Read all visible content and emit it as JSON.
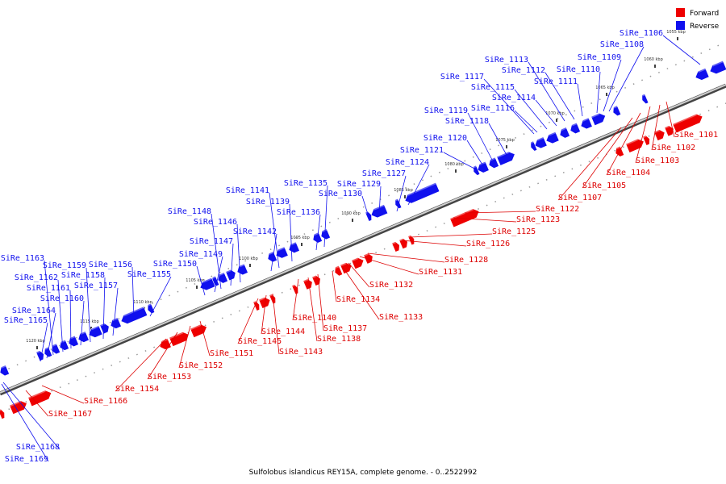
{
  "caption": "Sulfolobus islandicus REY15A, complete genome. - 0..2522992",
  "legend": [
    {
      "label": "Forward",
      "color": "#ee0000"
    },
    {
      "label": "Reverse",
      "color": "#1010ee"
    }
  ],
  "axis": {
    "ticks": [
      "1055 kbp",
      "1060 kbp",
      "1065 kbp",
      "1070 kbp",
      "1075 kbp",
      "1080 kbp",
      "1085 kbp",
      "1090 kbp",
      "1095 kbp",
      "1100 kbp",
      "1105 kbp",
      "1110 kbp",
      "1115 kbp",
      "1120 kbp"
    ]
  },
  "reverse_genes": [
    "SiRe_1106",
    "SiRe_1108",
    "SiRe_1109",
    "SiRe_1110",
    "SiRe_1111",
    "SiRe_1112",
    "SiRe_1113",
    "SiRe_1114",
    "SiRe_1115",
    "SiRe_1116",
    "SiRe_1117",
    "SiRe_1118",
    "SiRe_1119",
    "SiRe_1120",
    "SiRe_1121",
    "SiRe_1124",
    "SiRe_1127",
    "SiRe_1129",
    "SiRe_1130",
    "SiRe_1135",
    "SiRe_1136",
    "SiRe_1139",
    "SiRe_1141",
    "SiRe_1142",
    "SiRe_1146",
    "SiRe_1147",
    "SiRe_1148",
    "SiRe_1149",
    "SiRe_1150",
    "SiRe_1155",
    "SiRe_1156",
    "SiRe_1157",
    "SiRe_1158",
    "SiRe_1159",
    "SiRe_1160",
    "SiRe_1161",
    "SiRe_1162",
    "SiRe_1163",
    "SiRe_1164",
    "SiRe_1165",
    "SiRe_1168",
    "SiRe_1169"
  ],
  "forward_genes": [
    "SiRe_1101",
    "SiRe_1102",
    "SiRe_1103",
    "SiRe_1104",
    "SiRe_1105",
    "SiRe_1107",
    "SiRe_1122",
    "SiRe_1123",
    "SiRe_1125",
    "SiRe_1126",
    "SiRe_1128",
    "SiRe_1131",
    "SiRe_1132",
    "SiRe_1133",
    "SiRe_1134",
    "SiRe_1137",
    "SiRe_1138",
    "SiRe_1140",
    "SiRe_1143",
    "SiRe_1144",
    "SiRe_1145",
    "SiRe_1151",
    "SiRe_1152",
    "SiRe_1153",
    "SiRe_1154",
    "SiRe_1166",
    "SiRe_1167"
  ]
}
